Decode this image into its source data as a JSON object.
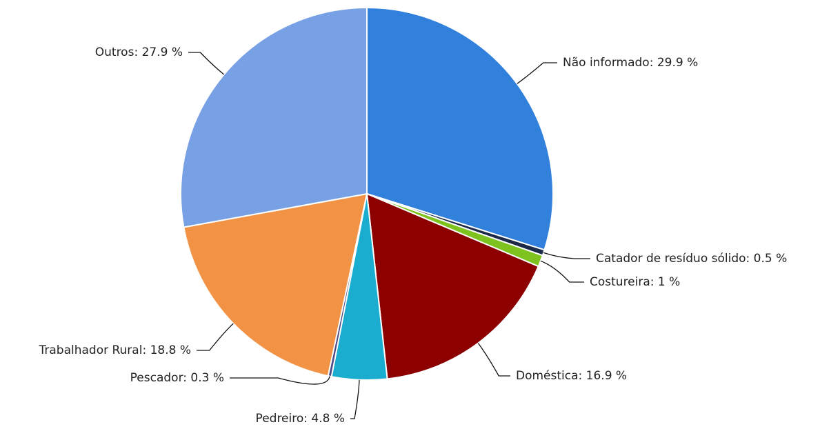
{
  "chart_data": {
    "type": "pie",
    "categories": [
      "Não informado",
      "Catador de resíduo sólido",
      "Costureira",
      "Doméstica",
      "Pedreiro",
      "Pescador",
      "Trabalhador Rural",
      "Outros"
    ],
    "values": [
      29.9,
      0.5,
      1,
      16.9,
      4.8,
      0.3,
      18.8,
      27.9
    ],
    "value_labels": [
      ": 29.9 %",
      ": 0.5 %",
      ": 1 %",
      ": 16.9 %",
      ": 4.8 %",
      ": 0.3 %",
      ": 18.8 %",
      ": 27.9 %"
    ],
    "colors": [
      "#3180db",
      "#1c2a48",
      "#7dc21e",
      "#8c0000",
      "#1aadd0",
      "#4b4a86",
      "#f29245",
      "#78a0e4"
    ]
  }
}
